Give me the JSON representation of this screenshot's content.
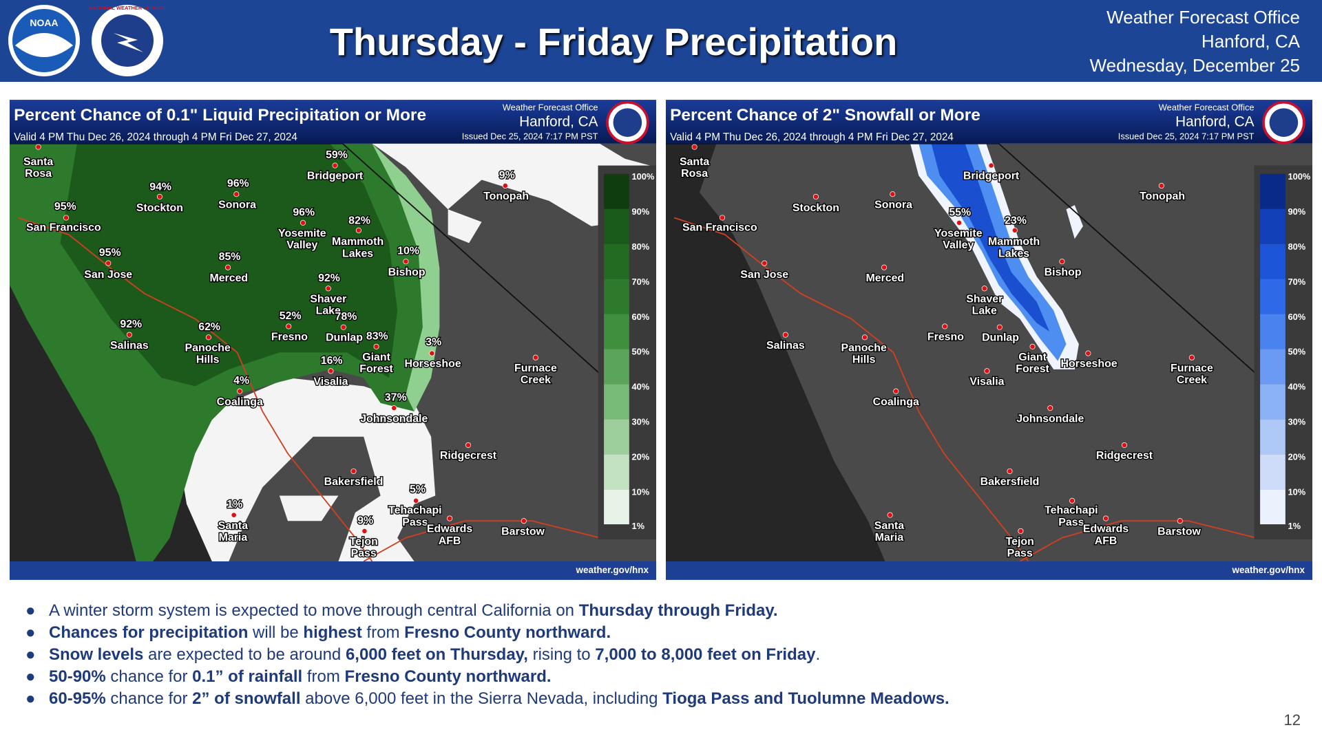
{
  "header": {
    "title": "Thursday - Friday Precipitation",
    "office": [
      "Weather Forecast Office",
      "Hanford, CA",
      "Wednesday, December 25"
    ],
    "logos": [
      "NOAA",
      "NATIONAL WEATHER SERVICE"
    ]
  },
  "maps": [
    {
      "title": "Percent Chance of 0.1\" Liquid Precipitation or More",
      "valid": "Valid 4 PM Thu Dec 26, 2024 through 4 PM Fri Dec 27, 2024",
      "office": "Weather Forecast Office",
      "location": "Hanford, CA",
      "issued": "Issued Dec 25, 2024 7:17 PM PST",
      "footer": "weather.gov/hnx",
      "legend": [
        "100%",
        "90%",
        "80%",
        "70%",
        "60%",
        "50%",
        "40%",
        "30%",
        "20%",
        "10%",
        "1%"
      ],
      "cities": [
        {
          "name": [
            "Santa",
            "Rosa"
          ]
        },
        {
          "name": [
            "San Francisco"
          ],
          "pct": "95%"
        },
        {
          "name": [
            "Stockton"
          ],
          "pct": "94%"
        },
        {
          "name": [
            "Sonora"
          ],
          "pct": "96%"
        },
        {
          "name": [
            "Bridgeport"
          ],
          "pct": "59%"
        },
        {
          "name": [
            "Tonopah"
          ],
          "pct": "9%"
        },
        {
          "name": [
            "Yosemite",
            "Valley"
          ],
          "pct": "96%"
        },
        {
          "name": [
            "Mammoth",
            "Lakes"
          ],
          "pct": "82%"
        },
        {
          "name": [
            "Bishop"
          ],
          "pct": "10%"
        },
        {
          "name": [
            "San Jose"
          ],
          "pct": "95%"
        },
        {
          "name": [
            "Merced"
          ],
          "pct": "85%"
        },
        {
          "name": [
            "Shaver",
            "Lake"
          ],
          "pct": "92%"
        },
        {
          "name": [
            "Salinas"
          ],
          "pct": "92%"
        },
        {
          "name": [
            "Fresno"
          ],
          "pct": "52%"
        },
        {
          "name": [
            "Panoche",
            "Hills"
          ],
          "pct": "62%"
        },
        {
          "name": [
            "Dunlap"
          ],
          "pct": "78%"
        },
        {
          "name": [
            "Giant",
            "Forest"
          ],
          "pct": "83%"
        },
        {
          "name": [
            "Horseshoe"
          ],
          "pct": "3%"
        },
        {
          "name": [
            "Visalia"
          ],
          "pct": "16%"
        },
        {
          "name": [
            "Furnace",
            "Creek"
          ]
        },
        {
          "name": [
            "Coalinga"
          ],
          "pct": "4%"
        },
        {
          "name": [
            "Johnsondale"
          ],
          "pct": "37%"
        },
        {
          "name": [
            "Ridgecrest"
          ]
        },
        {
          "name": [
            "Bakersfield"
          ]
        },
        {
          "name": [
            "Tehachapi",
            "Pass"
          ],
          "pct": "5%"
        },
        {
          "name": [
            "Santa",
            "Maria"
          ],
          "pct": "1%"
        },
        {
          "name": [
            "Edwards",
            "AFB"
          ]
        },
        {
          "name": [
            "Barstow"
          ]
        },
        {
          "name": [
            "Tejon",
            "Pass"
          ],
          "pct": "9%"
        }
      ]
    },
    {
      "title": "Percent Chance of 2\" Snowfall or More",
      "valid": "Valid 4 PM Thu Dec 26, 2024 through 4 PM Fri Dec 27, 2024",
      "office": "Weather Forecast Office",
      "location": "Hanford, CA",
      "issued": "Issued Dec 25, 2024 7:17 PM PST",
      "footer": "weather.gov/hnx",
      "legend": [
        "100%",
        "90%",
        "80%",
        "70%",
        "60%",
        "50%",
        "40%",
        "30%",
        "20%",
        "10%",
        "1%"
      ],
      "cities": [
        {
          "name": [
            "Santa",
            "Rosa"
          ]
        },
        {
          "name": [
            "San Francisco"
          ]
        },
        {
          "name": [
            "Stockton"
          ]
        },
        {
          "name": [
            "Sonora"
          ]
        },
        {
          "name": [
            "Bridgeport"
          ]
        },
        {
          "name": [
            "Tonopah"
          ]
        },
        {
          "name": [
            "Yosemite",
            "Valley"
          ],
          "pct": "55%"
        },
        {
          "name": [
            "Mammoth",
            "Lakes"
          ],
          "pct": "23%"
        },
        {
          "name": [
            "Bishop"
          ]
        },
        {
          "name": [
            "San Jose"
          ]
        },
        {
          "name": [
            "Merced"
          ]
        },
        {
          "name": [
            "Shaver",
            "Lake"
          ]
        },
        {
          "name": [
            "Salinas"
          ]
        },
        {
          "name": [
            "Fresno"
          ]
        },
        {
          "name": [
            "Panoche",
            "Hills"
          ]
        },
        {
          "name": [
            "Dunlap"
          ]
        },
        {
          "name": [
            "Giant",
            "Forest"
          ]
        },
        {
          "name": [
            "Horseshoe"
          ]
        },
        {
          "name": [
            "Visalia"
          ]
        },
        {
          "name": [
            "Furnace",
            "Creek"
          ]
        },
        {
          "name": [
            "Coalinga"
          ]
        },
        {
          "name": [
            "Johnsondale"
          ]
        },
        {
          "name": [
            "Ridgecrest"
          ]
        },
        {
          "name": [
            "Bakersfield"
          ]
        },
        {
          "name": [
            "Tehachapi",
            "Pass"
          ]
        },
        {
          "name": [
            "Santa",
            "Maria"
          ]
        },
        {
          "name": [
            "Edwards",
            "AFB"
          ]
        },
        {
          "name": [
            "Barstow"
          ]
        },
        {
          "name": [
            "Tejon",
            "Pass"
          ]
        }
      ]
    }
  ],
  "bullets": [
    [
      {
        "text": "A winter storm system is expected to move through central California on "
      },
      {
        "text": "Thursday through Friday.",
        "bold": true
      }
    ],
    [
      {
        "text": "Chances for precipitation",
        "bold": true
      },
      {
        "text": " will be "
      },
      {
        "text": "highest",
        "bold": true
      },
      {
        "text": " from "
      },
      {
        "text": "Fresno County northward.",
        "bold": true
      }
    ],
    [
      {
        "text": "Snow levels",
        "bold": true
      },
      {
        "text": " are expected to be around "
      },
      {
        "text": "6,000 feet on Thursday,",
        "bold": true
      },
      {
        "text": " rising to "
      },
      {
        "text": "7,000 to 8,000 feet on Friday",
        "bold": true
      },
      {
        "text": "."
      }
    ],
    [
      {
        "text": "50-90%",
        "bold": true
      },
      {
        "text": " chance for "
      },
      {
        "text": "0.1” of rainfall",
        "bold": true
      },
      {
        "text": " from "
      },
      {
        "text": "Fresno County northward.",
        "bold": true
      }
    ],
    [
      {
        "text": "60-95%",
        "bold": true
      },
      {
        "text": " chance for "
      },
      {
        "text": "2” of snowfall",
        "bold": true
      },
      {
        "text": " above 6,000 feet in the Sierra Nevada, including "
      },
      {
        "text": "Tioga Pass and Tuolumne Meadows.",
        "bold": true
      }
    ]
  ],
  "page_number": "12"
}
